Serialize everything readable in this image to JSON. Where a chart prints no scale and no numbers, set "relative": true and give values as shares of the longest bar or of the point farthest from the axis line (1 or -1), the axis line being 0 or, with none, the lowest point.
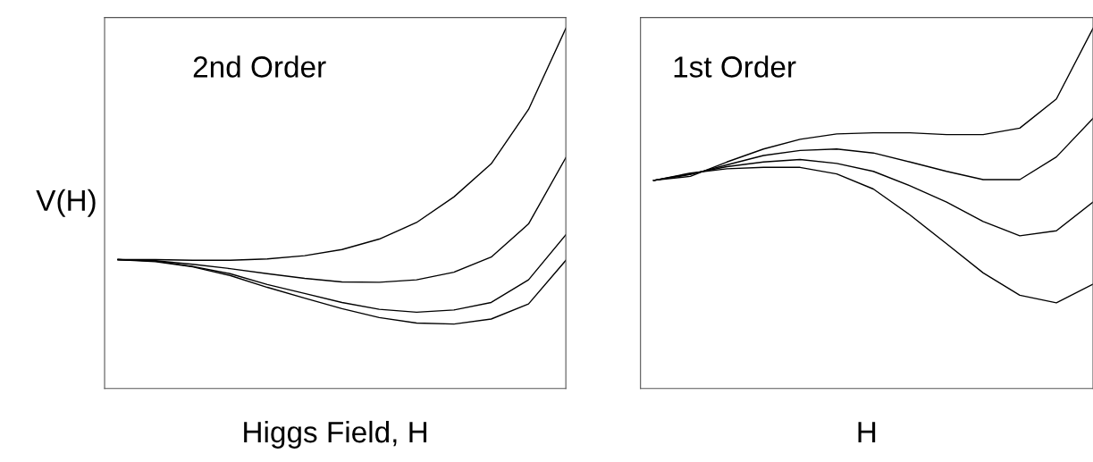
{
  "chart_data": [
    {
      "type": "line",
      "relative": true,
      "ylabel": "V(H)",
      "xlabel": "Higgs Field, H",
      "annotations": [
        "2nd Order"
      ],
      "categories": [
        null,
        null,
        null,
        null,
        null,
        null,
        null,
        null,
        null,
        null,
        null,
        null,
        null
      ],
      "series": [
        {
          "color": "#000000",
          "values": [
            0.358,
            0.358,
            0.356,
            0.356,
            0.36,
            0.369,
            0.386,
            0.415,
            0.461,
            0.532,
            0.624,
            0.775,
            1.0
          ]
        },
        {
          "color": "#000000",
          "values": [
            0.358,
            0.355,
            0.345,
            0.333,
            0.319,
            0.306,
            0.296,
            0.295,
            0.302,
            0.323,
            0.365,
            0.457,
            0.641
          ]
        },
        {
          "color": "#000000",
          "values": [
            0.358,
            0.354,
            0.339,
            0.319,
            0.289,
            0.264,
            0.239,
            0.22,
            0.212,
            0.218,
            0.239,
            0.302,
            0.427
          ]
        },
        {
          "color": "#000000",
          "values": [
            0.358,
            0.352,
            0.338,
            0.314,
            0.281,
            0.251,
            0.222,
            0.197,
            0.182,
            0.179,
            0.193,
            0.235,
            0.356
          ]
        }
      ]
    },
    {
      "type": "line",
      "relative": true,
      "xlabel": "H",
      "annotations": [
        "1st Order"
      ],
      "categories": [
        null,
        null,
        null,
        null,
        null,
        null,
        null,
        null,
        null,
        null,
        null,
        null,
        null
      ],
      "series": [
        {
          "color": "#000000",
          "values": [
            0.578,
            0.589,
            0.629,
            0.665,
            0.692,
            0.707,
            0.71,
            0.71,
            0.705,
            0.705,
            0.723,
            0.804,
            1.0
          ]
        },
        {
          "color": "#000000",
          "values": [
            0.578,
            0.594,
            0.621,
            0.647,
            0.661,
            0.665,
            0.654,
            0.629,
            0.603,
            0.58,
            0.58,
            0.643,
            0.75
          ]
        },
        {
          "color": "#000000",
          "values": [
            0.578,
            0.596,
            0.616,
            0.629,
            0.636,
            0.625,
            0.603,
            0.563,
            0.518,
            0.464,
            0.424,
            0.438,
            0.518
          ]
        },
        {
          "color": "#000000",
          "values": [
            0.578,
            0.598,
            0.61,
            0.614,
            0.614,
            0.596,
            0.554,
            0.482,
            0.402,
            0.321,
            0.259,
            0.238,
            0.29
          ]
        }
      ]
    }
  ]
}
